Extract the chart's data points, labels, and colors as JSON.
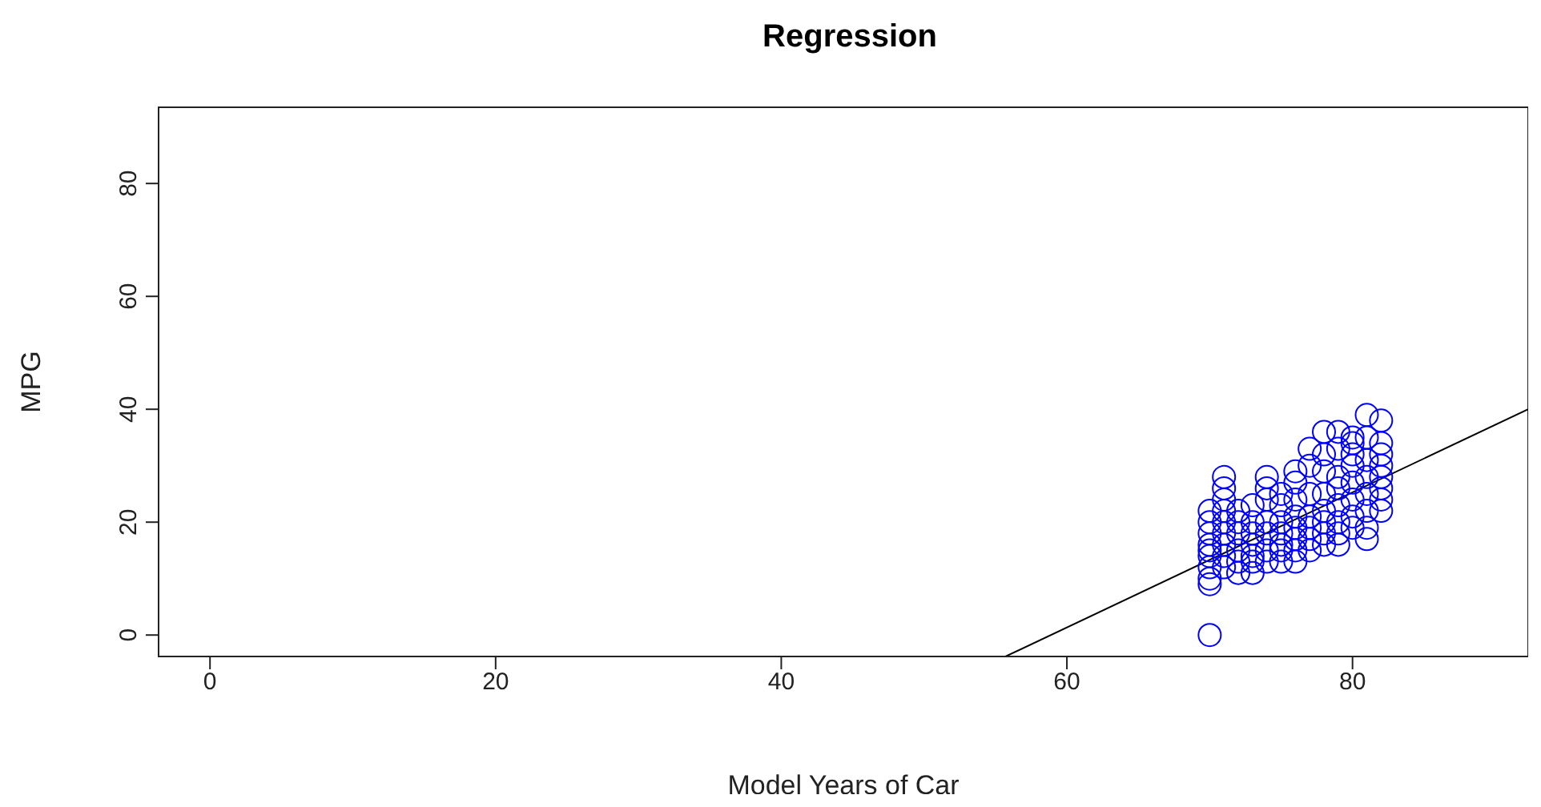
{
  "chart_data": {
    "type": "scatter",
    "title": "Regression",
    "xlabel": "Model Years of Car",
    "ylabel": "MPG",
    "xlim": [
      -3.6,
      92.3
    ],
    "ylim": [
      -3.8,
      93.5
    ],
    "xticks": [
      0,
      20,
      40,
      60,
      80
    ],
    "yticks": [
      0,
      20,
      40,
      60,
      80
    ],
    "series": [
      {
        "color": "#0000ff",
        "marker": "circle",
        "x": [
          70,
          70,
          70,
          70,
          70,
          70,
          70,
          70,
          70,
          70,
          71,
          71,
          71,
          71,
          71,
          71,
          71,
          71,
          71,
          72,
          72,
          72,
          72,
          72,
          72,
          73,
          73,
          73,
          73,
          73,
          73,
          73,
          74,
          74,
          74,
          74,
          74,
          74,
          74,
          75,
          75,
          75,
          75,
          75,
          75,
          75,
          76,
          76,
          76,
          76,
          76,
          76,
          76,
          76,
          77,
          77,
          77,
          77,
          77,
          77,
          77,
          78,
          78,
          78,
          78,
          78,
          78,
          78,
          78,
          79,
          79,
          79,
          79,
          79,
          79,
          79,
          79,
          80,
          80,
          80,
          80,
          80,
          80,
          80,
          80,
          81,
          81,
          81,
          81,
          81,
          81,
          81,
          81,
          82,
          82,
          82,
          82,
          82,
          82,
          82,
          82
        ],
        "values": [
          0,
          9,
          10,
          12,
          14,
          15,
          16,
          18,
          20,
          22,
          12,
          14,
          16,
          18,
          20,
          22,
          24,
          26,
          28,
          11,
          13,
          15,
          18,
          20,
          22,
          11,
          13,
          14,
          16,
          18,
          20,
          23,
          13,
          15,
          18,
          20,
          24,
          26,
          28,
          13,
          15,
          16,
          18,
          20,
          23,
          25,
          13,
          15,
          17,
          19,
          21,
          24,
          27,
          29,
          15,
          17,
          19,
          21,
          25,
          30,
          33,
          16,
          18,
          20,
          22,
          25,
          29,
          32,
          36,
          16,
          18,
          20,
          23,
          26,
          28,
          33,
          36,
          19,
          21,
          24,
          27,
          30,
          32,
          34,
          35,
          17,
          19,
          22,
          25,
          28,
          31,
          35,
          39,
          22,
          24,
          26,
          28,
          30,
          32,
          34,
          38
        ]
      },
      {
        "type": "line",
        "color": "#000000",
        "marker": "none",
        "line_style": "solid",
        "x": [
          55.7,
          92.3
        ],
        "values": [
          -3.8,
          40
        ]
      }
    ]
  }
}
